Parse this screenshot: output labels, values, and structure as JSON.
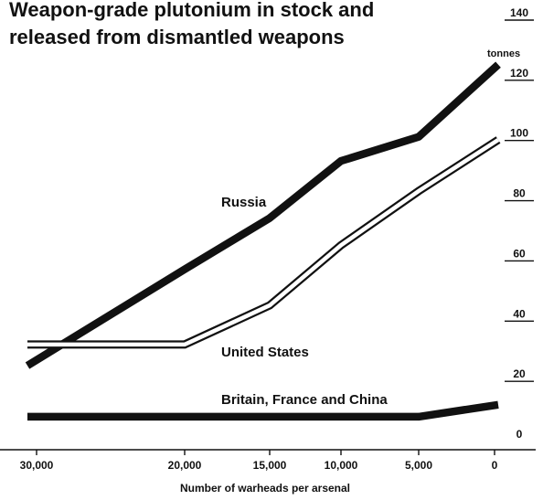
{
  "chart_data": {
    "type": "line",
    "title_lines": [
      "Weapon-grade plutonium in stock and",
      "released from dismantled weapons"
    ],
    "xlabel": "Number of warheads per arsenal",
    "ylabel": "tonnes",
    "x": [
      30000,
      20000,
      15000,
      10000,
      5000,
      0
    ],
    "x_tick_labels": [
      "30,000",
      "20,000",
      "15,000",
      "10,000",
      "5,000",
      "0"
    ],
    "y_ticks": [
      0,
      20,
      40,
      60,
      80,
      100,
      120,
      140
    ],
    "y_tick_labels": [
      "0",
      "20",
      "40",
      "60",
      "80",
      "100",
      "120",
      "140"
    ],
    "ylim": [
      0,
      140
    ],
    "grid": false,
    "series": [
      {
        "name": "Russia",
        "style": "thick-black",
        "values": [
          24,
          56,
          73,
          92,
          100,
          124
        ]
      },
      {
        "name": "United States",
        "style": "hollow",
        "values": [
          31,
          31,
          44,
          64,
          82,
          99
        ]
      },
      {
        "name": "Britain, France and China",
        "style": "thick-black",
        "values": [
          7,
          7,
          7,
          7,
          7,
          11
        ]
      }
    ]
  }
}
